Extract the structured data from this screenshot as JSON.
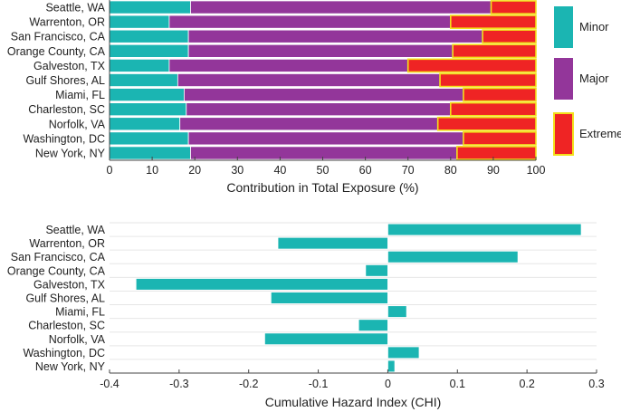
{
  "colors": {
    "minor": "#1bb5b2",
    "major": "#93369a",
    "extreme": "#ef2424",
    "extreme_border": "#f3e01b",
    "bar_border": "#ffffff",
    "axis": "#444444",
    "grid": "#e6e6e6"
  },
  "chart_data": [
    {
      "type": "bar",
      "orientation": "horizontal",
      "stacked": true,
      "categories": [
        "Seattle, WA",
        "Warrenton, OR",
        "San Francisco, CA",
        "Orange County, CA",
        "Galveston, TX",
        "Gulf Shores, AL",
        "Miami, FL",
        "Charleston, SC",
        "Norfolk, VA",
        "Washington, DC",
        "New York, NY"
      ],
      "series": [
        {
          "name": "Minor",
          "values": [
            19,
            14,
            18.5,
            18.5,
            14,
            16,
            17.5,
            18,
            16.5,
            18.5,
            19
          ]
        },
        {
          "name": "Major",
          "values": [
            70.5,
            66,
            69,
            62,
            56,
            61.5,
            65.5,
            62,
            60.5,
            64.5,
            62.5
          ]
        },
        {
          "name": "Extreme",
          "values": [
            10.5,
            20,
            12.5,
            19.5,
            30,
            22.5,
            17,
            20,
            23,
            17,
            18.5
          ]
        }
      ],
      "xlabel": "Contribution in Total Exposure (%)",
      "ylabel": "",
      "xlim": [
        0,
        100
      ],
      "xticks": [
        0,
        10,
        20,
        30,
        40,
        50,
        60,
        70,
        80,
        90,
        100
      ],
      "legend": {
        "placement": "right",
        "entries": [
          "Minor",
          "Major",
          "Extreme"
        ]
      },
      "grid": false
    },
    {
      "type": "bar",
      "orientation": "horizontal",
      "categories": [
        "Seattle, WA",
        "Warrenton, OR",
        "San Francisco, CA",
        "Orange County, CA",
        "Galveston, TX",
        "Gulf Shores, AL",
        "Miami, FL",
        "Charleston, SC",
        "Norfolk, VA",
        "Washington, DC",
        "New York, NY"
      ],
      "values": [
        0.278,
        -0.158,
        0.187,
        -0.032,
        -0.362,
        -0.168,
        0.027,
        -0.042,
        -0.177,
        0.045,
        0.01
      ],
      "xlabel": "Cumulative Hazard Index (CHI)",
      "ylabel": "",
      "xlim": [
        -0.4,
        0.3
      ],
      "xticks": [
        -0.4,
        -0.3,
        -0.2,
        -0.1,
        0,
        0.1,
        0.2,
        0.3
      ],
      "xtick_labels": [
        "-0.4",
        "-0.3",
        "-0.2",
        "-0.1",
        "0",
        "0.1",
        "0.2",
        "0.3"
      ],
      "grid": true
    }
  ]
}
